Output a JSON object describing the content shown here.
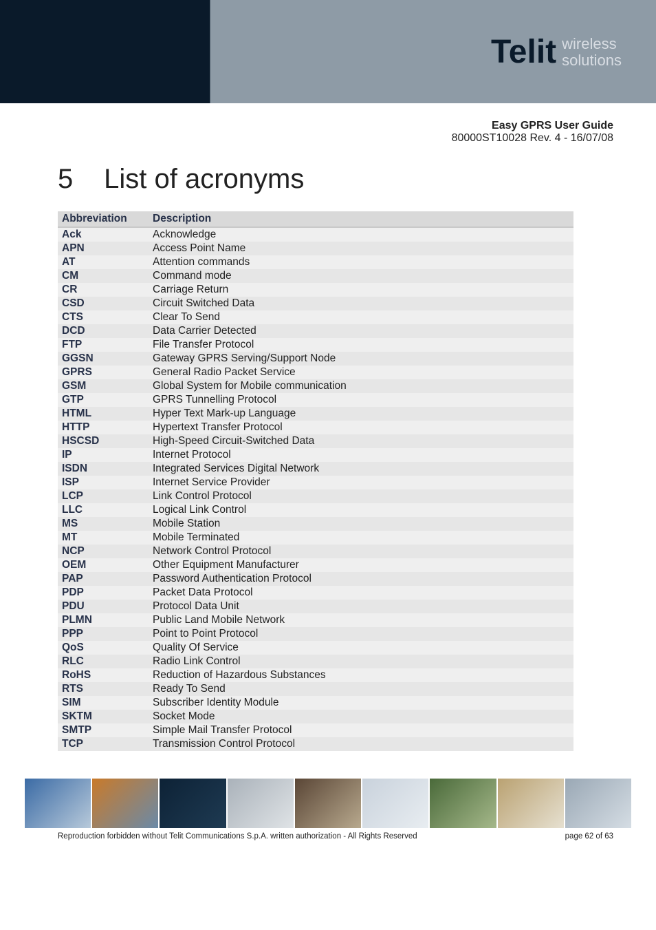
{
  "header": {
    "logo_text": "Telit",
    "logo_sub1": "wireless",
    "logo_sub2": "solutions",
    "title": "Easy GPRS User Guide",
    "revision": "80000ST10028 Rev. 4 - 16/07/08"
  },
  "section": {
    "number": "5",
    "title": "List of acronyms"
  },
  "table": {
    "columns": [
      "Abbreviation",
      "Description"
    ],
    "rows": [
      [
        "Ack",
        "Acknowledge"
      ],
      [
        "APN",
        "Access Point Name"
      ],
      [
        "AT",
        "Attention commands"
      ],
      [
        "CM",
        "Command mode"
      ],
      [
        "CR",
        "Carriage Return"
      ],
      [
        "CSD",
        "Circuit Switched Data"
      ],
      [
        "CTS",
        "Clear To Send"
      ],
      [
        "DCD",
        "Data Carrier Detected"
      ],
      [
        "FTP",
        "File Transfer Protocol"
      ],
      [
        "GGSN",
        "Gateway GPRS Serving/Support Node"
      ],
      [
        "GPRS",
        "General Radio Packet Service"
      ],
      [
        "GSM",
        "Global System for Mobile communication"
      ],
      [
        "GTP",
        "GPRS Tunnelling Protocol"
      ],
      [
        "HTML",
        "Hyper Text Mark-up Language"
      ],
      [
        "HTTP",
        "Hypertext Transfer Protocol"
      ],
      [
        "HSCSD",
        "High-Speed Circuit-Switched Data"
      ],
      [
        "IP",
        "Internet Protocol"
      ],
      [
        "ISDN",
        "Integrated Services Digital Network"
      ],
      [
        "ISP",
        "Internet Service Provider"
      ],
      [
        "LCP",
        "Link Control Protocol"
      ],
      [
        "LLC",
        "Logical Link Control"
      ],
      [
        "MS",
        "Mobile Station"
      ],
      [
        "MT",
        "Mobile Terminated"
      ],
      [
        "NCP",
        "Network Control Protocol"
      ],
      [
        "OEM",
        "Other Equipment Manufacturer"
      ],
      [
        "PAP",
        "Password Authentication Protocol"
      ],
      [
        "PDP",
        "Packet Data Protocol"
      ],
      [
        "PDU",
        "Protocol Data Unit"
      ],
      [
        "PLMN",
        "Public Land Mobile Network"
      ],
      [
        "PPP",
        "Point to Point Protocol"
      ],
      [
        "QoS",
        "Quality Of Service"
      ],
      [
        "RLC",
        "Radio Link Control"
      ],
      [
        "RoHS",
        "Reduction of Hazardous Substances"
      ],
      [
        "RTS",
        "Ready To Send"
      ],
      [
        "SIM",
        "Subscriber Identity Module"
      ],
      [
        "SKTM",
        "Socket Mode"
      ],
      [
        "SMTP",
        "Simple Mail Transfer Protocol"
      ],
      [
        "TCP",
        "Transmission Control Protocol"
      ]
    ]
  },
  "footer": {
    "copyright": "Reproduction forbidden without Telit Communications S.p.A. written authorization - All Rights Reserved",
    "page": "page 62 of 63"
  }
}
